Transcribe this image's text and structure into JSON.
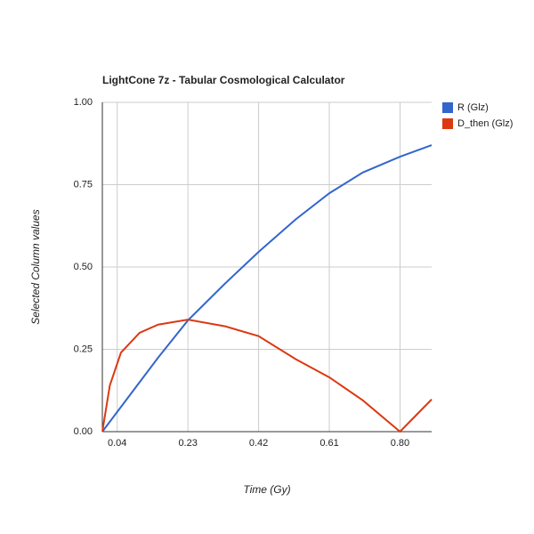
{
  "chart_data": {
    "type": "line",
    "title": "LightCone 7z - Tabular Cosmological Calculator",
    "x_label": "Time (Gy)",
    "y_label": "Selected Column values",
    "x": [
      0,
      0.02,
      0.05,
      0.1,
      0.15,
      0.23,
      0.33,
      0.42,
      0.52,
      0.61,
      0.7,
      0.8,
      0.885
    ],
    "series": [
      {
        "name": "R (Glz)",
        "color": "#3366cc",
        "values": [
          0,
          0.03,
          0.075,
          0.15,
          0.225,
          0.338,
          0.45,
          0.546,
          0.645,
          0.724,
          0.787,
          0.835,
          0.87
        ]
      },
      {
        "name": "D_then (Glz)",
        "color": "#dc3912",
        "values": [
          0,
          0.14,
          0.24,
          0.3,
          0.325,
          0.34,
          0.32,
          0.29,
          0.22,
          0.165,
          0.095,
          0,
          0.098
        ]
      }
    ],
    "xlim": [
      0,
      0.885
    ],
    "ylim": [
      0,
      1
    ],
    "xticks": [
      0.04,
      0.23,
      0.42,
      0.61,
      {
        "value": 0.8,
        "label": "0.80"
      }
    ],
    "yticks": [
      {
        "value": 0,
        "label": "0.00"
      },
      {
        "value": 0.25,
        "label": "0.25"
      },
      {
        "value": 0.5,
        "label": "0.50"
      },
      {
        "value": 0.75,
        "label": "0.75"
      },
      {
        "value": 1,
        "label": "1.00"
      }
    ],
    "grid": true,
    "legend": "right"
  }
}
